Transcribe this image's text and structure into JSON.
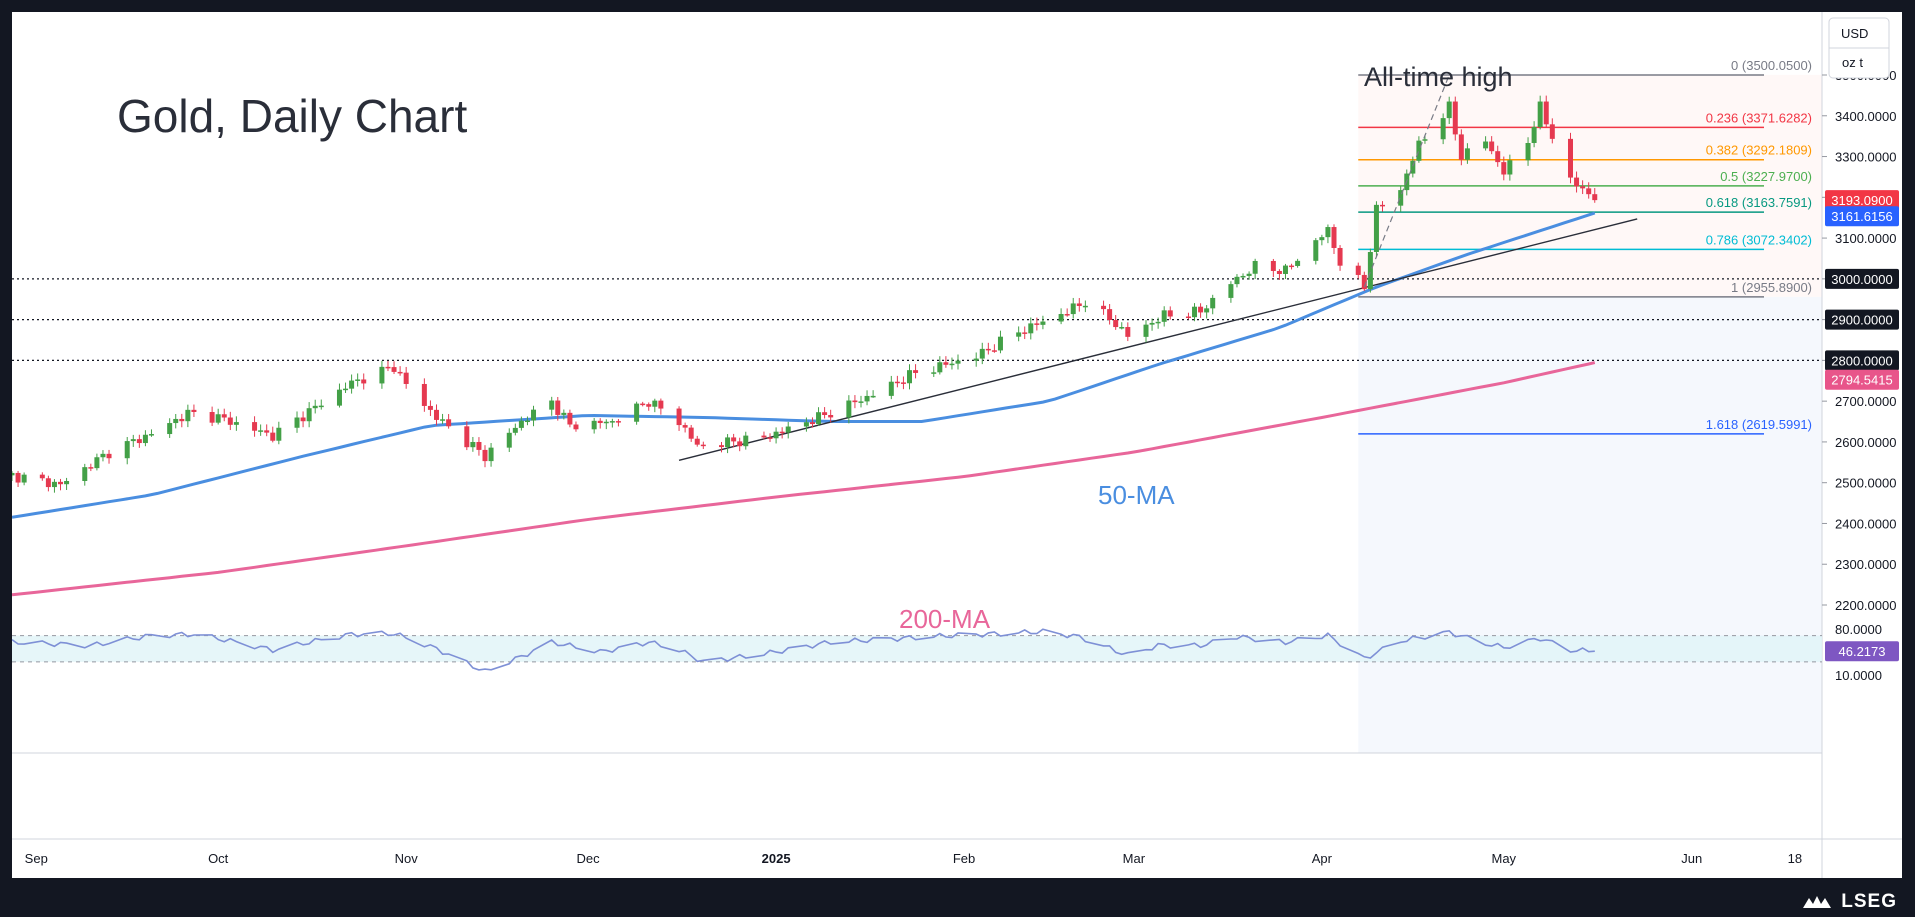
{
  "title": "Gold, Daily Chart",
  "annotations": {
    "ath": "All-time high",
    "ma50": "50-MA",
    "ma200": "200-MA"
  },
  "brand": "LSEG",
  "axis": {
    "currency": "USD",
    "unit": "oz t",
    "price_ticks": [
      "3500.0000",
      "3400.0000",
      "3300.0000",
      "3200.0000",
      "3100.0000",
      "3000.0000",
      "2900.0000",
      "2800.0000",
      "2700.0000",
      "2600.0000",
      "2500.0000",
      "2400.0000",
      "2300.0000",
      "2200.0000"
    ],
    "rsi_ticks": [
      "80.0000",
      "10.0000"
    ],
    "x_ticks": [
      "Sep",
      "Oct",
      "Nov",
      "Dec",
      "2025",
      "Feb",
      "Mar",
      "Apr",
      "May",
      "Jun",
      "18"
    ]
  },
  "badges": {
    "last_price": "3193.0900",
    "ma50_value": "3161.6156",
    "level_3000": "3000.0000",
    "level_2900": "2900.0000",
    "level_2800": "2800.0000",
    "ma200_value": "2794.5415",
    "rsi_value": "46.2173"
  },
  "colors": {
    "up": "#43a047",
    "down": "#e53950",
    "ma50": "#4a8ee0",
    "ma200": "#e8669a",
    "rsi": "#7e90d6",
    "badge_red": "#f23645",
    "badge_blue": "#2962ff",
    "badge_dark": "#131722",
    "badge_pink": "#e8558a",
    "badge_rsi": "#7e57c2"
  },
  "chart_data": {
    "type": "candlestick",
    "title": "Gold, Daily Chart",
    "ylabel": "USD / oz t",
    "ylim": [
      2160,
      3560
    ],
    "x_range": [
      "2024-08-28",
      "2025-06-20"
    ],
    "ohlc_anchor_closes": [
      [
        "2024-08-28",
        2518
      ],
      [
        "2024-09-05",
        2495
      ],
      [
        "2024-09-13",
        2575
      ],
      [
        "2024-09-20",
        2620
      ],
      [
        "2024-09-26",
        2670
      ],
      [
        "2024-10-01",
        2660
      ],
      [
        "2024-10-10",
        2615
      ],
      [
        "2024-10-18",
        2695
      ],
      [
        "2024-10-23",
        2745
      ],
      [
        "2024-10-30",
        2785
      ],
      [
        "2024-11-01",
        2740
      ],
      [
        "2024-11-06",
        2660
      ],
      [
        "2024-11-14",
        2565
      ],
      [
        "2024-11-20",
        2650
      ],
      [
        "2024-11-25",
        2700
      ],
      [
        "2024-11-28",
        2640
      ],
      [
        "2024-12-05",
        2650
      ],
      [
        "2024-12-11",
        2700
      ],
      [
        "2024-12-16",
        2650
      ],
      [
        "2024-12-19",
        2590
      ],
      [
        "2024-12-30",
        2610
      ],
      [
        "2025-01-08",
        2660
      ],
      [
        "2025-01-16",
        2710
      ],
      [
        "2025-01-24",
        2770
      ],
      [
        "2025-02-03",
        2810
      ],
      [
        "2025-02-10",
        2870
      ],
      [
        "2025-02-18",
        2920
      ],
      [
        "2025-02-21",
        2945
      ],
      [
        "2025-02-26",
        2890
      ],
      [
        "2025-02-28",
        2860
      ],
      [
        "2025-03-06",
        2910
      ],
      [
        "2025-03-12",
        2920
      ],
      [
        "2025-03-17",
        2990
      ],
      [
        "2025-03-21",
        3030
      ],
      [
        "2025-03-26",
        3020
      ],
      [
        "2025-04-02",
        3120
      ],
      [
        "2025-04-04",
        3040
      ],
      [
        "2025-04-08",
        2980
      ],
      [
        "2025-04-10",
        3170
      ],
      [
        "2025-04-14",
        3220
      ],
      [
        "2025-04-17",
        3330
      ],
      [
        "2025-04-22",
        3420
      ],
      [
        "2025-04-24",
        3300
      ],
      [
        "2025-04-28",
        3340
      ],
      [
        "2025-05-01",
        3260
      ],
      [
        "2025-05-05",
        3340
      ],
      [
        "2025-05-07",
        3420
      ],
      [
        "2025-05-09",
        3350
      ],
      [
        "2025-05-12",
        3240
      ],
      [
        "2025-05-15",
        3210
      ],
      [
        "2025-05-16",
        3193
      ]
    ],
    "last_close": 3193.09,
    "series": [
      {
        "name": "50-MA",
        "values": [
          [
            "2024-08-28",
            2415
          ],
          [
            "2024-09-20",
            2470
          ],
          [
            "2024-10-15",
            2565
          ],
          [
            "2024-11-05",
            2640
          ],
          [
            "2024-12-01",
            2665
          ],
          [
            "2024-12-20",
            2660
          ],
          [
            "2025-01-10",
            2650
          ],
          [
            "2025-01-25",
            2650
          ],
          [
            "2025-02-15",
            2700
          ],
          [
            "2025-03-05",
            2790
          ],
          [
            "2025-03-25",
            2880
          ],
          [
            "2025-04-10",
            2980
          ],
          [
            "2025-04-25",
            3060
          ],
          [
            "2025-05-16",
            3161.6156
          ]
        ]
      },
      {
        "name": "200-MA",
        "values": [
          [
            "2024-08-28",
            2225
          ],
          [
            "2024-10-01",
            2280
          ],
          [
            "2024-11-01",
            2345
          ],
          [
            "2024-12-01",
            2410
          ],
          [
            "2025-01-01",
            2465
          ],
          [
            "2025-02-01",
            2515
          ],
          [
            "2025-03-01",
            2575
          ],
          [
            "2025-04-01",
            2660
          ],
          [
            "2025-05-01",
            2745
          ],
          [
            "2025-05-16",
            2794.5415
          ]
        ]
      }
    ],
    "fibonacci": [
      {
        "label": "0 (3500.0500)",
        "value": 3500.05
      },
      {
        "label": "0.236 (3371.6282)",
        "value": 3371.6282
      },
      {
        "label": "0.382 (3292.1809)",
        "value": 3292.1809
      },
      {
        "label": "0.5 (3227.9700)",
        "value": 3227.97
      },
      {
        "label": "0.618 (3163.7591)",
        "value": 3163.7591
      },
      {
        "label": "0.786 (3072.3402)",
        "value": 3072.3402
      },
      {
        "label": "1 (2955.8900)",
        "value": 2955.89
      },
      {
        "label": "1.618 (2619.5991)",
        "value": 2619.5991
      }
    ],
    "horizontal_levels": [
      3000,
      2900,
      2800
    ],
    "trendline": {
      "from": [
        "2024-12-16",
        2555
      ],
      "to": [
        "2025-05-23",
        3147
      ]
    },
    "rsi": {
      "ylim": [
        0,
        100
      ],
      "levels": [
        70,
        30
      ],
      "last": 46.2173,
      "anchors": [
        [
          "2024-08-28",
          60
        ],
        [
          "2024-09-10",
          55
        ],
        [
          "2024-09-20",
          70
        ],
        [
          "2024-09-27",
          72
        ],
        [
          "2024-10-03",
          62
        ],
        [
          "2024-10-10",
          48
        ],
        [
          "2024-10-16",
          60
        ],
        [
          "2024-10-23",
          72
        ],
        [
          "2024-10-30",
          73
        ],
        [
          "2024-11-06",
          50
        ],
        [
          "2024-11-14",
          15
        ],
        [
          "2024-11-20",
          38
        ],
        [
          "2024-11-25",
          60
        ],
        [
          "2024-12-03",
          45
        ],
        [
          "2024-12-11",
          60
        ],
        [
          "2024-12-16",
          48
        ],
        [
          "2024-12-20",
          30
        ],
        [
          "2024-12-30",
          42
        ],
        [
          "2025-01-10",
          60
        ],
        [
          "2025-01-20",
          65
        ],
        [
          "2025-01-30",
          70
        ],
        [
          "2025-02-07",
          73
        ],
        [
          "2025-02-14",
          76
        ],
        [
          "2025-02-20",
          68
        ],
        [
          "2025-02-28",
          40
        ],
        [
          "2025-03-05",
          55
        ],
        [
          "2025-03-12",
          55
        ],
        [
          "2025-03-18",
          68
        ],
        [
          "2025-03-26",
          60
        ],
        [
          "2025-04-02",
          70
        ],
        [
          "2025-04-08",
          35
        ],
        [
          "2025-04-14",
          62
        ],
        [
          "2025-04-22",
          75
        ],
        [
          "2025-04-28",
          58
        ],
        [
          "2025-05-01",
          52
        ],
        [
          "2025-05-07",
          66
        ],
        [
          "2025-05-12",
          48
        ],
        [
          "2025-05-16",
          46.2
        ]
      ]
    }
  }
}
